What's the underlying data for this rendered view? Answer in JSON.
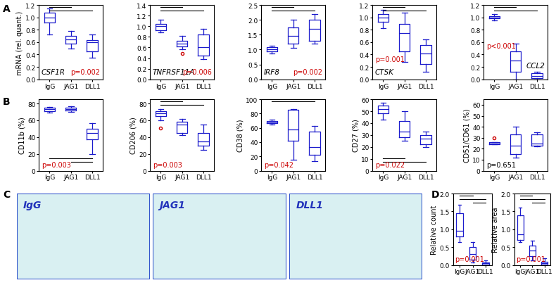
{
  "panel_labels": [
    "A",
    "B",
    "C",
    "D"
  ],
  "images": [
    "IgG",
    "JAG1",
    "DLL1"
  ],
  "chart_data": [
    {
      "type": "box",
      "title": "CSF1R",
      "ylabel": "mRNA (rel. quant.)",
      "categories": [
        "IgG",
        "JAG1",
        "DLL1"
      ],
      "color": "#1a1acc",
      "ylim": [
        0,
        1.2
      ],
      "yticks": [
        {
          "value": 0,
          "label": "0.0"
        },
        0.2,
        0.4,
        0.6,
        0.8,
        {
          "value": 1,
          "label": "1.0"
        },
        1.2
      ],
      "boxes": [
        {
          "whislo": 0.72,
          "q1": 0.92,
          "med": 1.0,
          "q3": 1.08,
          "whishi": 1.15,
          "fliers": []
        },
        {
          "whislo": 0.5,
          "q1": 0.58,
          "med": 0.65,
          "q3": 0.7,
          "whishi": 0.78,
          "fliers": []
        },
        {
          "whislo": 0.35,
          "q1": 0.45,
          "med": 0.6,
          "q3": 0.63,
          "whishi": 0.72,
          "fliers": []
        }
      ],
      "comparisons": [
        [
          0,
          1
        ],
        [
          0,
          2
        ]
      ],
      "annotations": [
        {
          "text": "p=0.002",
          "color": "#cc0000"
        }
      ]
    },
    {
      "type": "box",
      "title": "TNFRSF11A",
      "categories": [
        "IgG",
        "JAG1",
        "DLL1"
      ],
      "color": "#1a1acc",
      "ylim": [
        0,
        1.4
      ],
      "yticks": [
        {
          "value": 0,
          "label": "0.0"
        },
        0.2,
        0.4,
        0.6,
        0.8,
        {
          "value": 1,
          "label": "1.0"
        },
        1.2,
        1.4
      ],
      "boxes": [
        {
          "whislo": 0.88,
          "q1": 0.93,
          "med": 1.0,
          "q3": 1.05,
          "whishi": 1.12,
          "fliers": []
        },
        {
          "whislo": 0.57,
          "q1": 0.62,
          "med": 0.67,
          "q3": 0.72,
          "whishi": 0.82,
          "fliers": [
            0.48
          ]
        },
        {
          "whislo": 0.38,
          "q1": 0.45,
          "med": 0.6,
          "q3": 0.85,
          "whishi": 0.95,
          "fliers": []
        }
      ],
      "comparisons": [
        [
          0,
          1
        ],
        [
          0,
          2
        ]
      ],
      "annotations": [
        {
          "text": "p=0.006",
          "color": "#cc0000"
        }
      ]
    },
    {
      "type": "box",
      "title": "IRF8",
      "categories": [
        "IgG",
        "JAG1",
        "DLL1"
      ],
      "color": "#1a1acc",
      "ylim": [
        0,
        2.5
      ],
      "yticks": [
        {
          "value": 0,
          "label": "0.0"
        },
        0.5,
        {
          "value": 1,
          "label": "1.0"
        },
        1.5,
        {
          "value": 2,
          "label": "2.0"
        },
        2.5
      ],
      "boxes": [
        {
          "whislo": 0.88,
          "q1": 0.93,
          "med": 1.0,
          "q3": 1.08,
          "whishi": 1.12,
          "fliers": []
        },
        {
          "whislo": 1.05,
          "q1": 1.2,
          "med": 1.45,
          "q3": 1.75,
          "whishi": 2.0,
          "fliers": []
        },
        {
          "whislo": 1.2,
          "q1": 1.3,
          "med": 1.7,
          "q3": 2.0,
          "whishi": 2.2,
          "fliers": []
        }
      ],
      "comparisons": [
        [
          0,
          1
        ],
        [
          0,
          2
        ]
      ],
      "annotations": [
        {
          "text": "p=0.002",
          "color": "#cc0000"
        }
      ]
    },
    {
      "type": "box",
      "title": "CTSK",
      "categories": [
        "IgG",
        "JAG1",
        "DLL1"
      ],
      "color": "#1a1acc",
      "ylim": [
        0,
        1.2
      ],
      "yticks": [
        {
          "value": 0,
          "label": "0.0"
        },
        0.2,
        0.4,
        0.6,
        0.8,
        {
          "value": 1,
          "label": "1.0"
        },
        1.2
      ],
      "boxes": [
        {
          "whislo": 0.83,
          "q1": 0.93,
          "med": 1.0,
          "q3": 1.05,
          "whishi": 1.12,
          "fliers": []
        },
        {
          "whislo": 0.28,
          "q1": 0.45,
          "med": 0.75,
          "q3": 0.9,
          "whishi": 1.08,
          "fliers": []
        },
        {
          "whislo": 0.12,
          "q1": 0.25,
          "med": 0.42,
          "q3": 0.55,
          "whishi": 0.65,
          "fliers": []
        }
      ],
      "comparisons": [
        [
          0,
          1
        ],
        [
          0,
          2
        ]
      ],
      "annotations": [
        {
          "text": "p=0.001",
          "color": "#cc0000"
        }
      ]
    },
    {
      "type": "box",
      "title": "CCL2",
      "categories": [
        "IgG",
        "JAG1",
        "DLL1"
      ],
      "color": "#1a1acc",
      "ylim": [
        0,
        1.2
      ],
      "yticks": [
        {
          "value": 0,
          "label": "0.0"
        },
        0.2,
        0.4,
        0.6,
        0.8,
        {
          "value": 1,
          "label": "1.0"
        },
        1.2
      ],
      "boxes": [
        {
          "whislo": 0.95,
          "q1": 0.98,
          "med": 1.0,
          "q3": 1.02,
          "whishi": 1.05,
          "fliers": []
        },
        {
          "whislo": 0.0,
          "q1": 0.12,
          "med": 0.3,
          "q3": 0.45,
          "whishi": 0.58,
          "fliers": []
        },
        {
          "whislo": 0.0,
          "q1": 0.02,
          "med": 0.05,
          "q3": 0.1,
          "whishi": 0.12,
          "fliers": []
        }
      ],
      "comparisons": [
        [
          0,
          1
        ],
        [
          0,
          2
        ]
      ],
      "annotations": [
        {
          "text": "p<0.001",
          "color": "#cc0000"
        }
      ]
    },
    {
      "type": "box",
      "ylabel": "CD11b (%)",
      "categories": [
        "IgG",
        "JAG1",
        "DLL1"
      ],
      "color": "#1a1acc",
      "ylim": [
        0,
        85
      ],
      "yticks": [
        0,
        20,
        40,
        60,
        80
      ],
      "boxes": [
        {
          "whislo": 69,
          "q1": 71,
          "med": 73,
          "q3": 75,
          "whishi": 76,
          "fliers": []
        },
        {
          "whislo": 70,
          "q1": 72,
          "med": 73,
          "q3": 75,
          "whishi": 77,
          "fliers": []
        },
        {
          "whislo": 20,
          "q1": 37,
          "med": 45,
          "q3": 50,
          "whishi": 57,
          "fliers": []
        }
      ],
      "comparisons": [
        [
          0,
          2
        ],
        [
          1,
          2
        ]
      ],
      "annotations": [
        {
          "text": "p=0.003",
          "color": "#cc0000"
        }
      ]
    },
    {
      "type": "box",
      "ylabel": "CD206 (%)",
      "categories": [
        "IgG",
        "JAG1",
        "DLL1"
      ],
      "color": "#1a1acc",
      "ylim": [
        0,
        85
      ],
      "yticks": [
        0,
        20,
        40,
        60,
        80
      ],
      "boxes": [
        {
          "whislo": 60,
          "q1": 65,
          "med": 68,
          "q3": 71,
          "whishi": 73,
          "fliers": [
            51
          ]
        },
        {
          "whislo": 42,
          "q1": 45,
          "med": 55,
          "q3": 58,
          "whishi": 62,
          "fliers": []
        },
        {
          "whislo": 25,
          "q1": 30,
          "med": 35,
          "q3": 45,
          "whishi": 55,
          "fliers": []
        }
      ],
      "comparisons": [
        [
          0,
          1
        ],
        [
          0,
          2
        ]
      ],
      "annotations": [
        {
          "text": "p=0.003",
          "color": "#cc0000"
        }
      ]
    },
    {
      "type": "box",
      "ylabel": "CD38 (%)",
      "categories": [
        "IgG",
        "JAG1",
        "DLL1"
      ],
      "color": "#1a1acc",
      "ylim": [
        0,
        100
      ],
      "yticks": [
        0,
        20,
        40,
        60,
        80,
        100
      ],
      "boxes": [
        {
          "whislo": 65,
          "q1": 67,
          "med": 68,
          "q3": 70,
          "whishi": 72,
          "fliers": []
        },
        {
          "whislo": 15,
          "q1": 42,
          "med": 58,
          "q3": 85,
          "whishi": 86,
          "fliers": []
        },
        {
          "whislo": 13,
          "q1": 22,
          "med": 33,
          "q3": 55,
          "whishi": 63,
          "fliers": []
        }
      ],
      "comparisons": [
        [
          0,
          2
        ]
      ],
      "annotations": [
        {
          "text": "p=0.042",
          "color": "#cc0000"
        }
      ]
    },
    {
      "type": "box",
      "ylabel": "CD27 (%)",
      "categories": [
        "IgG",
        "JAG1",
        "DLL1"
      ],
      "color": "#1a1acc",
      "ylim": [
        0,
        60
      ],
      "yticks": [
        0,
        10,
        20,
        30,
        40,
        50,
        60
      ],
      "boxes": [
        {
          "whislo": 43,
          "q1": 48,
          "med": 52,
          "q3": 55,
          "whishi": 57,
          "fliers": []
        },
        {
          "whislo": 25,
          "q1": 28,
          "med": 33,
          "q3": 42,
          "whishi": 50,
          "fliers": []
        },
        {
          "whislo": 20,
          "q1": 22,
          "med": 27,
          "q3": 30,
          "whishi": 33,
          "fliers": []
        }
      ],
      "comparisons": [
        [
          0,
          1
        ],
        [
          0,
          2
        ]
      ],
      "annotations": [
        {
          "text": "p=0.022",
          "color": "#cc0000"
        }
      ]
    },
    {
      "type": "box",
      "ylabel": "CD51/CD61 (%)",
      "categories": [
        "IgG",
        "JAG1",
        "DLL1"
      ],
      "color": "#1a1acc",
      "ylim": [
        0,
        65
      ],
      "yticks": [
        0,
        10,
        20,
        30,
        40,
        50,
        60
      ],
      "boxes": [
        {
          "whislo": 24,
          "q1": 24,
          "med": 25,
          "q3": 26,
          "whishi": 26,
          "fliers": [
            30
          ]
        },
        {
          "whislo": 12,
          "q1": 15,
          "med": 23,
          "q3": 33,
          "whishi": 40,
          "fliers": []
        },
        {
          "whislo": 22,
          "q1": 23,
          "med": 25,
          "q3": 33,
          "whishi": 35,
          "fliers": []
        }
      ],
      "comparisons": [],
      "annotations": [
        {
          "text": "p=0.651",
          "color": "black"
        }
      ]
    },
    {
      "type": "box",
      "ylabel": "Relative count",
      "categories": [
        "IgG",
        "JAG1",
        "DLL1"
      ],
      "color": "#1a1acc",
      "ylim": [
        0,
        2
      ],
      "yticks": [
        {
          "value": 0,
          "label": "0.0"
        },
        0.5,
        {
          "value": 1,
          "label": "1.0"
        },
        1.5,
        {
          "value": 2,
          "label": "2.0"
        }
      ],
      "boxes": [
        {
          "whislo": 0.65,
          "q1": 0.8,
          "med": 0.95,
          "q3": 1.45,
          "whishi": 1.68,
          "fliers": []
        },
        {
          "whislo": 0.08,
          "q1": 0.15,
          "med": 0.3,
          "q3": 0.5,
          "whishi": 0.65,
          "fliers": []
        },
        {
          "whislo": 0.0,
          "q1": 0.02,
          "med": 0.05,
          "q3": 0.08,
          "whishi": 0.12,
          "fliers": []
        }
      ],
      "comparisons": [
        [
          0,
          1
        ],
        [
          0,
          2
        ],
        [
          1,
          2
        ]
      ],
      "annotations": [
        {
          "text": "p=0.001",
          "color": "#cc0000"
        }
      ]
    },
    {
      "type": "box",
      "ylabel": "Relative area",
      "categories": [
        "IgG",
        "JAG1",
        "DLL1"
      ],
      "color": "#1a1acc",
      "ylim": [
        0,
        2
      ],
      "yticks": [
        {
          "value": 0,
          "label": "0.0"
        },
        0.5,
        {
          "value": 1,
          "label": "1.0"
        },
        1.5,
        {
          "value": 2,
          "label": "2.0"
        }
      ],
      "boxes": [
        {
          "whislo": 0.65,
          "q1": 0.7,
          "med": 0.85,
          "q3": 1.4,
          "whishi": 1.6,
          "fliers": []
        },
        {
          "whislo": 0.12,
          "q1": 0.25,
          "med": 0.4,
          "q3": 0.55,
          "whishi": 0.68,
          "fliers": []
        },
        {
          "whislo": 0.0,
          "q1": 0.02,
          "med": 0.05,
          "q3": 0.1,
          "whishi": 0.18,
          "fliers": []
        }
      ],
      "comparisons": [
        [
          0,
          1
        ],
        [
          0,
          2
        ],
        [
          1,
          2
        ]
      ],
      "annotations": [
        {
          "text": "p=0.001",
          "color": "#cc0000"
        }
      ]
    }
  ]
}
